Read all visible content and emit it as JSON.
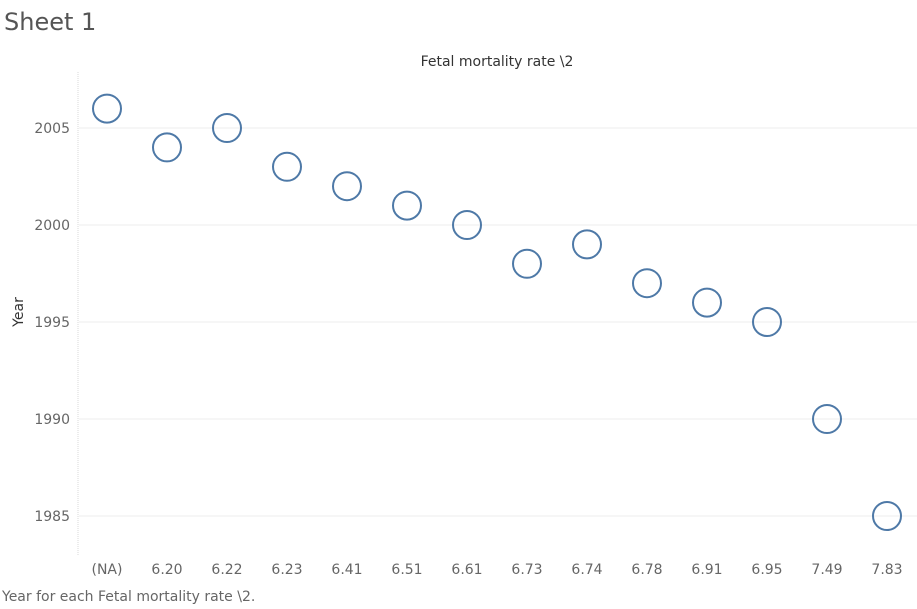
{
  "sheet": {
    "title": "Sheet 1"
  },
  "caption": "Year for each Fetal mortality rate \\2.",
  "chart_data": {
    "type": "scatter",
    "title": "Fetal mortality rate \\2",
    "xlabel": "",
    "ylabel": "Year",
    "categories": [
      "(NA)",
      "6.20",
      "6.22",
      "6.23",
      "6.41",
      "6.51",
      "6.61",
      "6.73",
      "6.74",
      "6.78",
      "6.91",
      "6.95",
      "7.49",
      "7.83"
    ],
    "values": [
      2006,
      2004,
      2005,
      2003,
      2002,
      2001,
      2000,
      1998,
      1999,
      1997,
      1996,
      1995,
      1990,
      1985
    ],
    "yticks": [
      "1985",
      "1990",
      "1995",
      "2000",
      "2005"
    ],
    "ylim": [
      1983,
      2008
    ],
    "grid": true,
    "marker": "open-circle",
    "colors": {
      "marker": "#4e79a7",
      "grid": "#ececec",
      "axis": "#d9d9d9"
    }
  }
}
